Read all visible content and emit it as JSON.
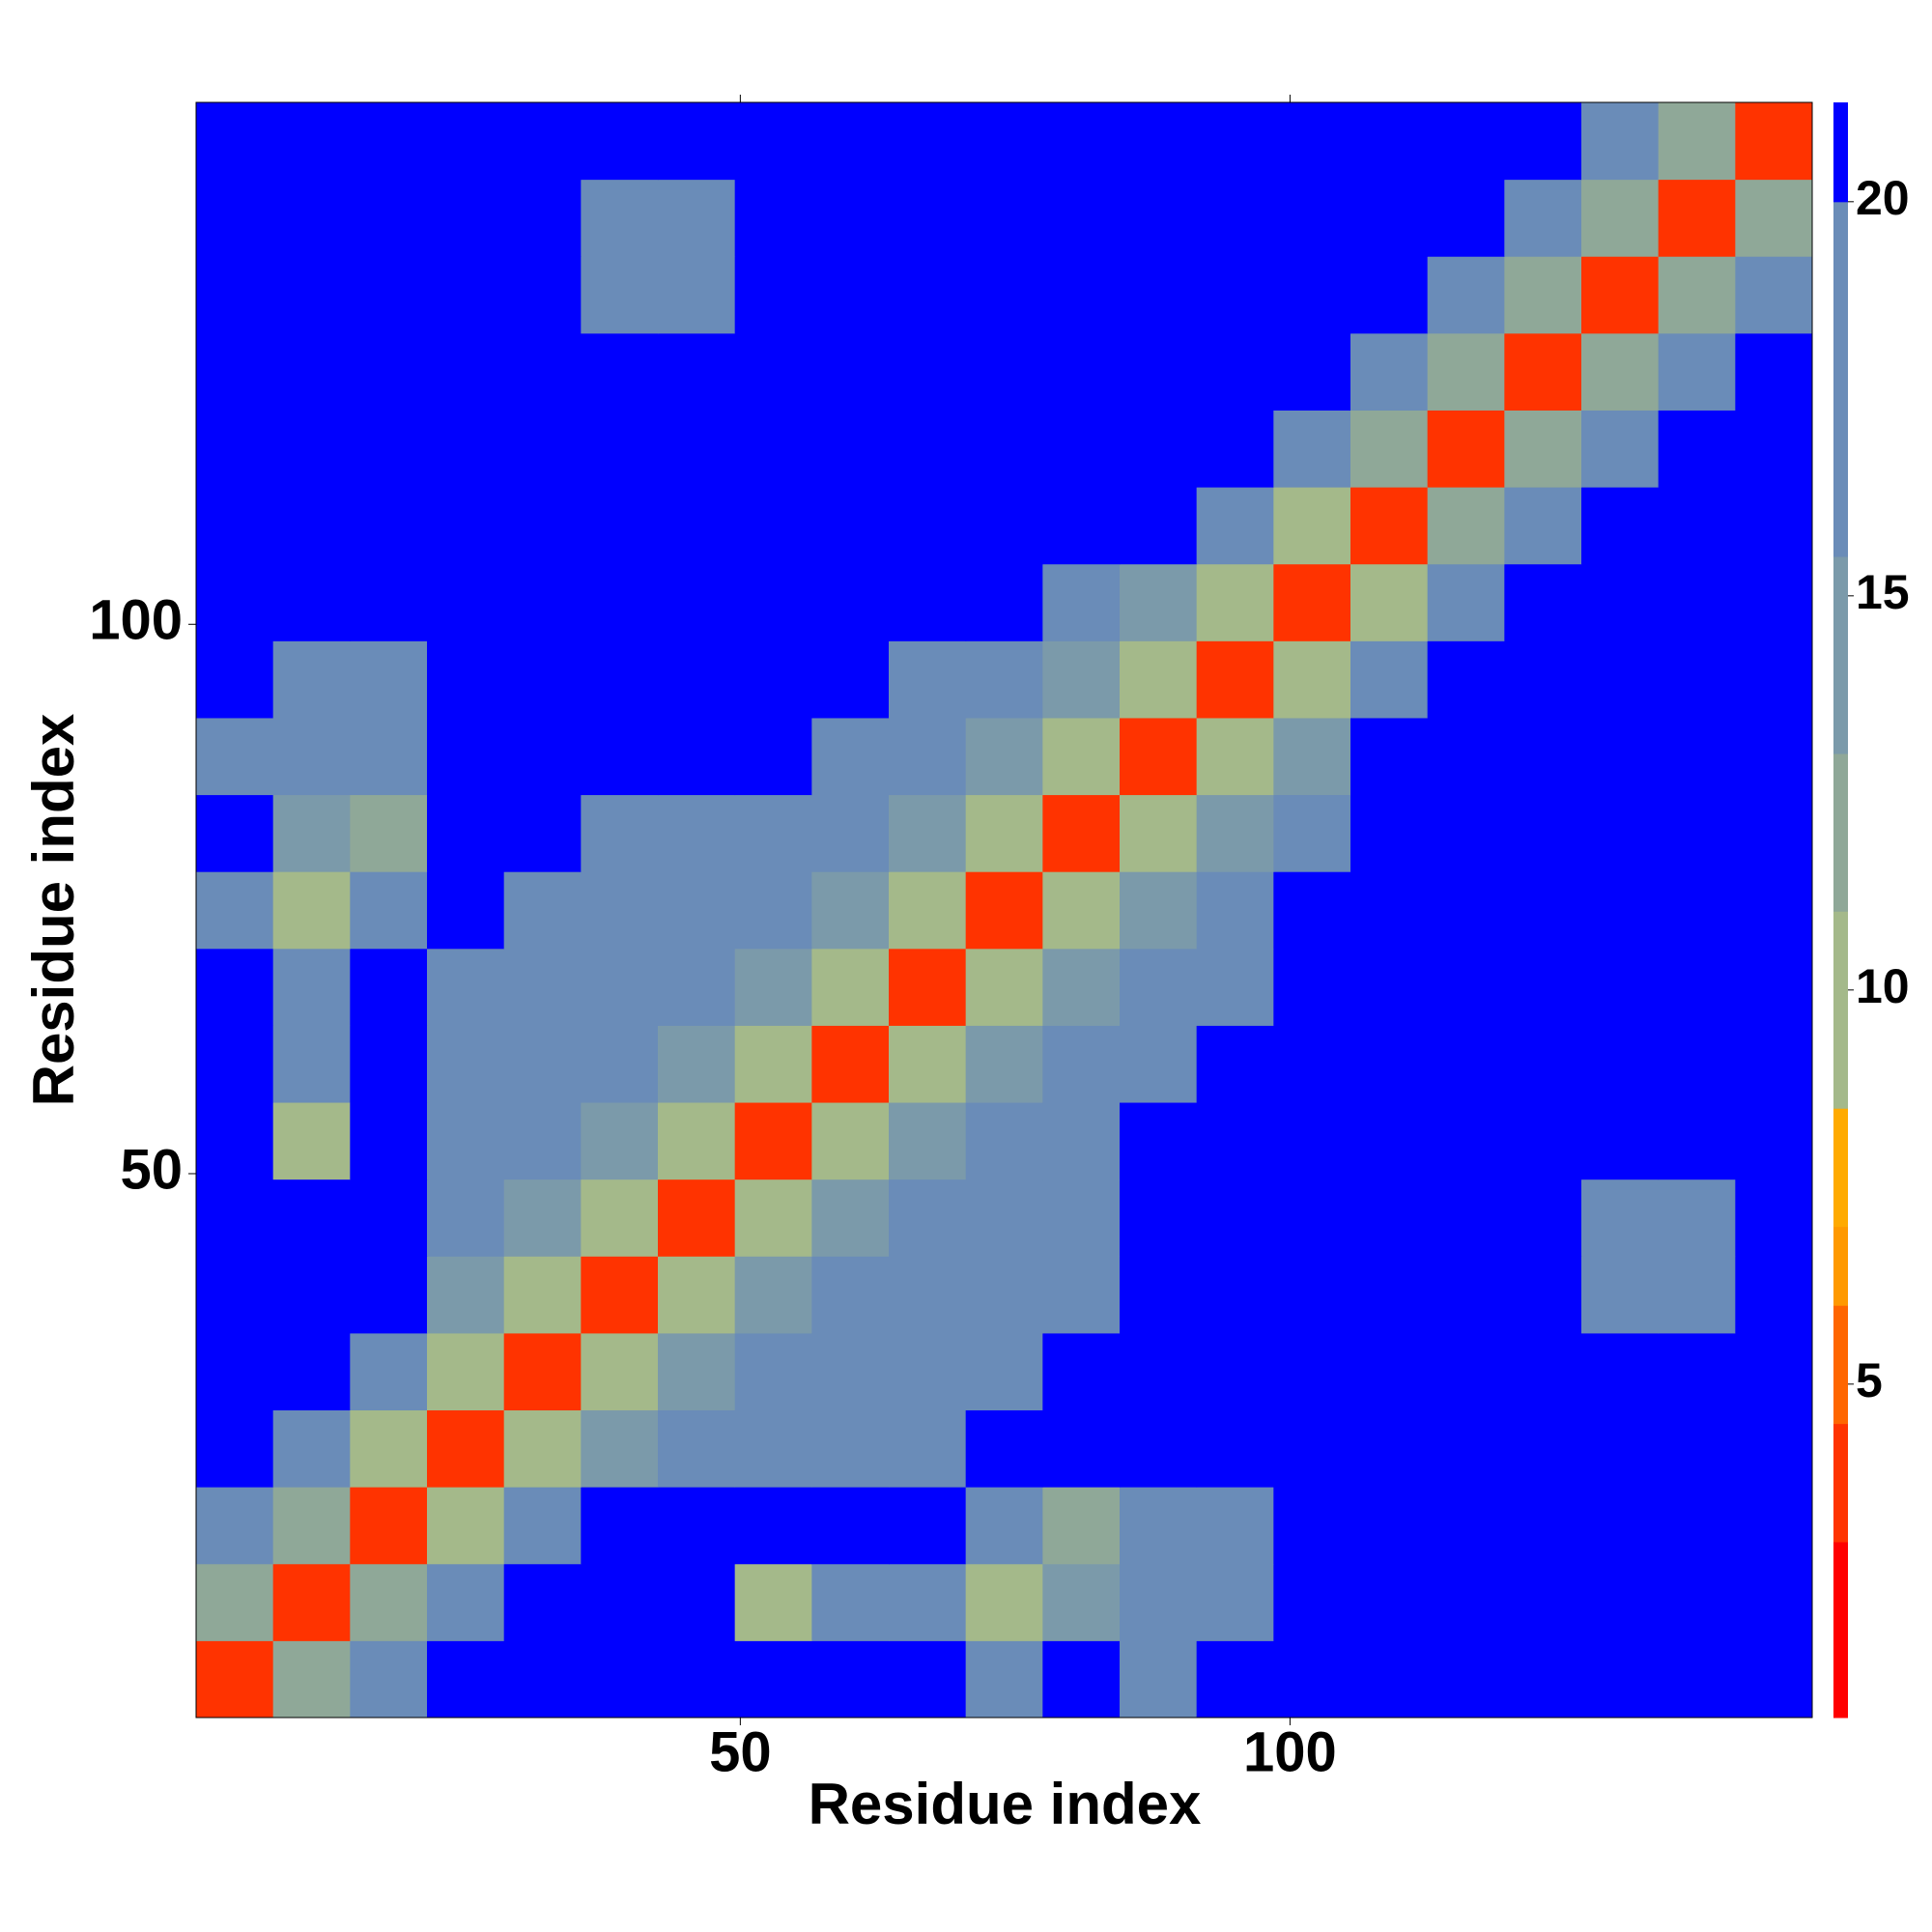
{
  "chart_data": {
    "type": "heatmap",
    "xlabel": "Residue index",
    "ylabel": "Residue index",
    "xlim": [
      0.5,
      147.5
    ],
    "ylim": [
      0.5,
      147.5
    ],
    "xticks": [
      50,
      100
    ],
    "yticks": [
      50,
      100
    ],
    "bins": [
      0.5,
      7.5,
      14.5,
      21.5,
      28.5,
      35.5,
      42.5,
      49.5,
      56.5,
      63.5,
      70.5,
      77.5,
      84.5,
      91.5,
      98.5,
      105.5,
      112.5,
      119.5,
      126.5,
      133.5,
      140.5,
      147.5
    ],
    "z": [
      [
        4,
        12,
        17,
        21,
        21,
        21,
        21,
        21,
        21,
        21,
        18,
        21,
        19,
        21,
        21,
        21,
        21,
        21,
        21,
        21,
        21
      ],
      [
        12,
        4,
        12,
        17,
        21,
        21,
        21,
        9,
        18,
        17,
        9,
        14,
        17,
        17,
        21,
        21,
        21,
        21,
        21,
        21,
        21
      ],
      [
        17,
        12,
        4,
        11,
        17,
        21,
        21,
        21,
        21,
        21,
        17,
        13,
        18,
        17,
        21,
        21,
        21,
        21,
        21,
        21,
        21
      ],
      [
        21,
        17,
        11,
        4,
        11,
        14,
        17,
        17,
        18,
        19,
        21,
        21,
        21,
        21,
        21,
        21,
        21,
        21,
        21,
        21,
        21
      ],
      [
        21,
        21,
        17,
        11,
        4,
        11,
        14,
        17,
        17,
        17,
        18,
        21,
        21,
        21,
        21,
        21,
        21,
        21,
        21,
        21,
        21
      ],
      [
        21,
        21,
        21,
        14,
        11,
        4,
        11,
        14,
        17,
        18,
        17,
        18,
        21,
        21,
        21,
        21,
        21,
        21,
        18,
        18,
        21
      ],
      [
        21,
        21,
        21,
        17,
        14,
        11,
        4,
        11,
        14,
        17,
        18,
        17,
        21,
        21,
        21,
        21,
        21,
        21,
        19,
        18,
        21
      ],
      [
        21,
        9,
        21,
        17,
        17,
        14,
        11,
        4,
        11,
        14,
        17,
        18,
        21,
        21,
        21,
        21,
        21,
        21,
        21,
        21,
        21
      ],
      [
        21,
        18,
        21,
        18,
        17,
        17,
        14,
        11,
        4,
        11,
        14,
        17,
        18,
        21,
        21,
        21,
        21,
        21,
        21,
        21,
        21
      ],
      [
        21,
        17,
        21,
        19,
        17,
        18,
        17,
        14,
        11,
        4,
        11,
        14,
        17,
        18,
        21,
        21,
        21,
        21,
        21,
        21,
        21
      ],
      [
        18,
        9,
        17,
        21,
        18,
        17,
        18,
        17,
        14,
        11,
        4,
        11,
        14,
        17,
        21,
        21,
        21,
        21,
        21,
        21,
        21
      ],
      [
        21,
        14,
        13,
        21,
        21,
        18,
        17,
        18,
        17,
        14,
        11,
        4,
        11,
        14,
        17,
        21,
        21,
        21,
        21,
        21,
        21
      ],
      [
        19,
        17,
        18,
        21,
        21,
        21,
        21,
        21,
        18,
        17,
        14,
        11,
        4,
        11,
        14,
        21,
        21,
        21,
        21,
        21,
        21
      ],
      [
        21,
        17,
        17,
        21,
        21,
        21,
        21,
        21,
        21,
        18,
        17,
        14,
        11,
        4,
        11,
        17,
        21,
        21,
        21,
        21,
        21
      ],
      [
        21,
        21,
        21,
        21,
        21,
        21,
        21,
        21,
        21,
        21,
        21,
        17,
        14,
        11,
        4,
        11,
        17,
        21,
        21,
        21,
        21
      ],
      [
        21,
        21,
        21,
        21,
        21,
        21,
        21,
        21,
        21,
        21,
        21,
        21,
        21,
        17,
        11,
        4,
        12,
        17,
        21,
        21,
        21
      ],
      [
        21,
        21,
        21,
        21,
        21,
        21,
        21,
        21,
        21,
        21,
        21,
        21,
        21,
        21,
        17,
        12,
        4,
        12,
        17,
        21,
        21
      ],
      [
        21,
        21,
        21,
        21,
        21,
        21,
        21,
        21,
        21,
        21,
        21,
        21,
        21,
        21,
        21,
        17,
        12,
        4,
        12,
        17,
        21
      ],
      [
        21,
        21,
        21,
        21,
        21,
        18,
        19,
        21,
        21,
        21,
        21,
        21,
        21,
        21,
        21,
        21,
        17,
        12,
        4,
        12,
        17
      ],
      [
        21,
        21,
        21,
        21,
        21,
        18,
        18,
        21,
        21,
        21,
        21,
        21,
        21,
        21,
        21,
        21,
        21,
        17,
        12,
        4,
        12
      ],
      [
        21,
        21,
        21,
        21,
        21,
        21,
        21,
        21,
        21,
        21,
        21,
        21,
        21,
        21,
        21,
        21,
        21,
        21,
        17,
        12,
        4
      ]
    ],
    "colorscale": {
      "bounds": [
        0.77,
        3,
        4.5,
        6,
        7,
        8.5,
        11,
        13,
        15.5,
        20,
        21.26
      ],
      "colors": [
        "#ff0000",
        "#ff3300",
        "#ff6600",
        "#ff9900",
        "#ffaa00",
        "#a4b98a",
        "#8fa898",
        "#7b9aaa",
        "#6a8cb8",
        "#0000ff"
      ]
    },
    "cticks": [
      5,
      10,
      15,
      20
    ]
  }
}
